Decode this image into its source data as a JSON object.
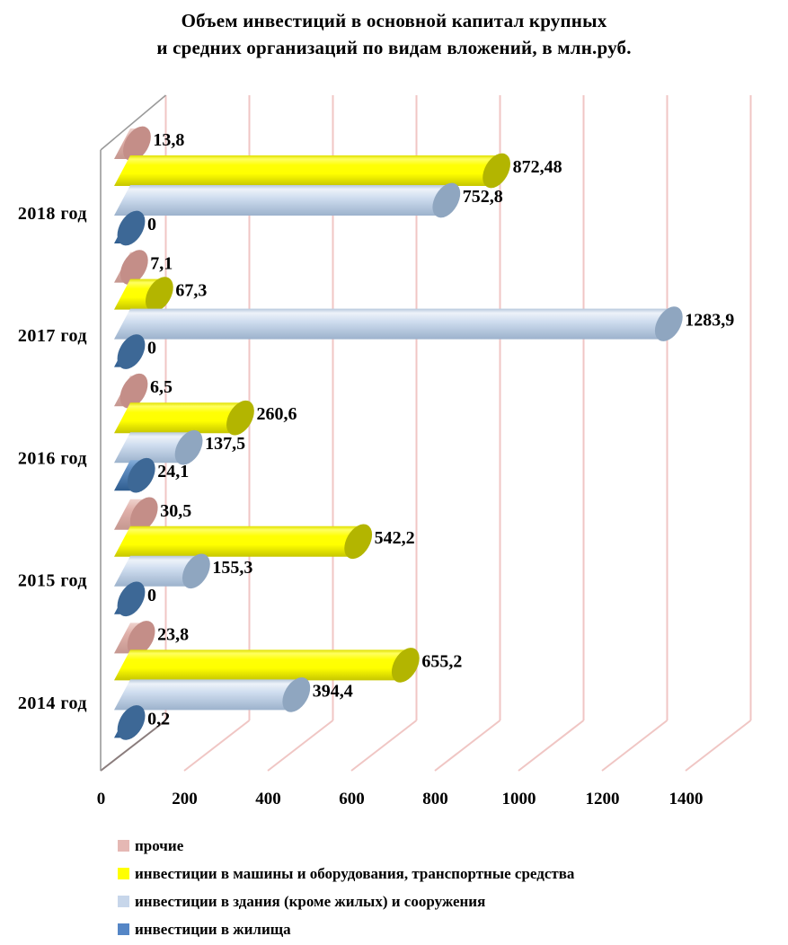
{
  "title": {
    "line1": "Объем инвестиций  в основной капитал крупных",
    "line2": "и средних организаций по видам вложений, в млн.руб."
  },
  "chart_data": {
    "type": "bar",
    "orientation": "horizontal",
    "style": "3d-cylinder",
    "unit": "млн.руб.",
    "categories": [
      "2018 год",
      "2017 год",
      "2016 год",
      "2015 год",
      "2014 год"
    ],
    "series": [
      {
        "name": "прочие",
        "color": "#e5b8b4",
        "cap_color": "#c48e88",
        "values": [
          13.8,
          7.1,
          6.5,
          30.5,
          23.8
        ],
        "value_labels": [
          "13,8",
          "7,1",
          "6,5",
          "30,5",
          "23,8"
        ]
      },
      {
        "name": "инвестиции в машины и  оборудования, транспортные средства",
        "color": "#ffff00",
        "cap_color": "#b3b500",
        "values": [
          872.48,
          67.3,
          260.6,
          542.2,
          655.2
        ],
        "value_labels": [
          "872,48",
          "67,3",
          "260,6",
          "542,2",
          "655,2"
        ]
      },
      {
        "name": "инвестиции в здания (кроме жилых) и сооружения",
        "color": "#c7d6ea",
        "cap_color": "#8fa6c0",
        "values": [
          752.8,
          1283.9,
          137.5,
          155.3,
          394.4
        ],
        "value_labels": [
          "752,8",
          "1283,9",
          "137,5",
          "155,3",
          "394,4"
        ]
      },
      {
        "name": "инвестиции в жилища",
        "color": "#5586c6",
        "cap_color": "#3d6896",
        "values": [
          0,
          0,
          24.1,
          0,
          0.2
        ],
        "value_labels": [
          "0",
          "0",
          "24,1",
          "0",
          "0,2"
        ]
      }
    ],
    "x_axis": {
      "tick_labels": [
        "0",
        "200",
        "400",
        "600",
        "800",
        "1000",
        "1200",
        "1400"
      ],
      "min": 0,
      "max": 1400,
      "grid": true
    },
    "legend_position": "bottom",
    "styles": {
      "gridline_color": "#f0c6c4",
      "wall_edge_color": "#9a9a9a",
      "floor_axis_color": "#8a7c7c",
      "label_color": "#000000",
      "background": "#ffffff"
    }
  }
}
